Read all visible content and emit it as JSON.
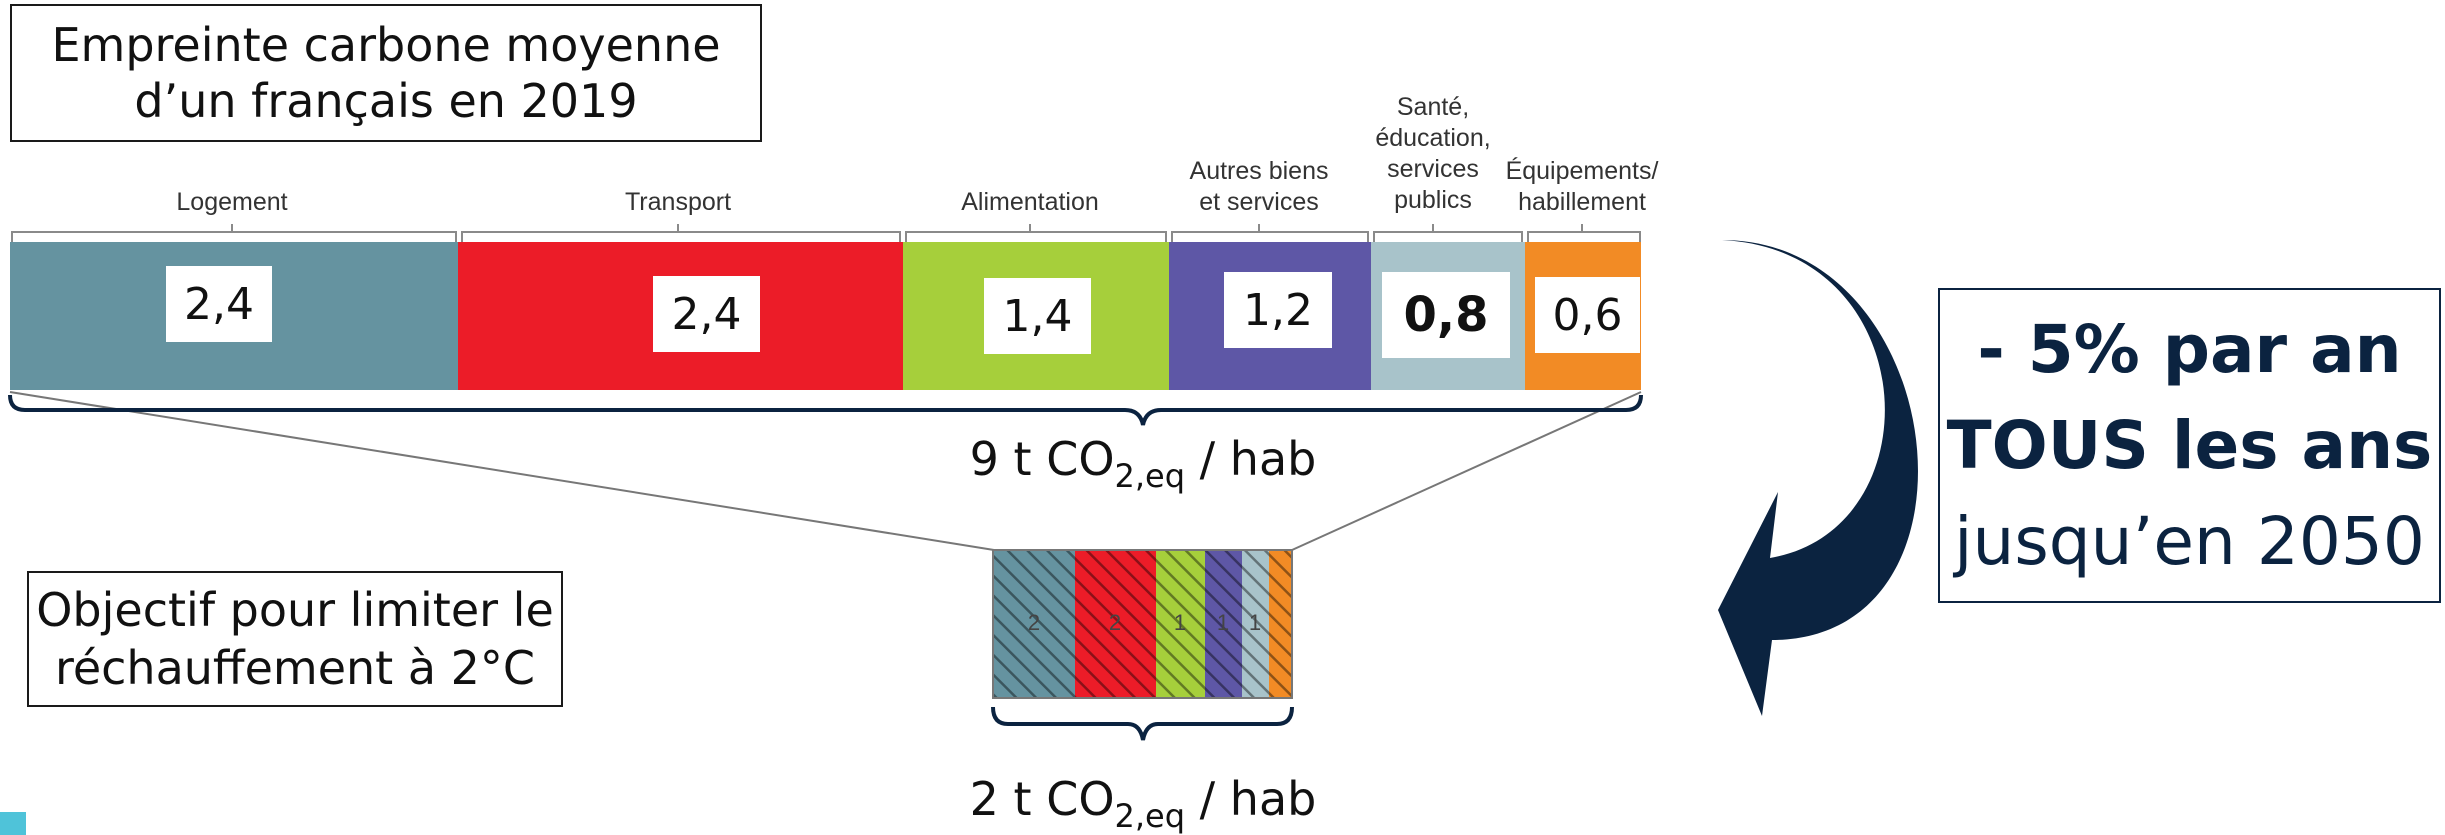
{
  "title": {
    "line1": "Empreinte carbone moyenne",
    "line2": "d’un français en 2019"
  },
  "objective": {
    "line1": "Objectif pour limiter le",
    "line2": "réchauffement à 2°C"
  },
  "categories": [
    {
      "label_lines": [
        "Logement"
      ],
      "value": "2,4",
      "color": "#6593a0"
    },
    {
      "label_lines": [
        "Transport"
      ],
      "value": "2,4",
      "color": "#ec1c28"
    },
    {
      "label_lines": [
        "Alimentation"
      ],
      "value": "1,4",
      "color": "#a6cf3b"
    },
    {
      "label_lines": [
        "Autres biens",
        "et services"
      ],
      "value": "1,2",
      "color": "#5e57a6"
    },
    {
      "label_lines": [
        "Santé,",
        "éducation,",
        "services",
        "publics"
      ],
      "value": "0,8",
      "color": "#a8c3ca"
    },
    {
      "label_lines": [
        "Équipements/",
        "habillement"
      ],
      "value": "0,6",
      "color": "#f28b25"
    }
  ],
  "current_total": {
    "prefix": "9 t CO",
    "sub": "2,eq",
    "suffix": " / hab"
  },
  "target_total": {
    "prefix": "2 t CO",
    "sub": "2,eq",
    "suffix": " / hab"
  },
  "target_segments": [
    {
      "value": "2",
      "color": "#6593a0"
    },
    {
      "value": "2",
      "color": "#ec1c28"
    },
    {
      "value": "1",
      "color": "#a6cf3b"
    },
    {
      "value": "1",
      "color": "#5e57a6"
    },
    {
      "value": "1",
      "color": "#a8c3ca"
    },
    {
      "value": "",
      "color": "#f28b25"
    }
  ],
  "goal": {
    "line1": "- 5% par an",
    "line2": "TOUS les ans",
    "line3": "jusqu’en 2050"
  },
  "colors": {
    "navy": "#0b2340",
    "corner": "#4fc3d9"
  },
  "icons": {
    "arrow": "curved-arrow-icon"
  }
}
